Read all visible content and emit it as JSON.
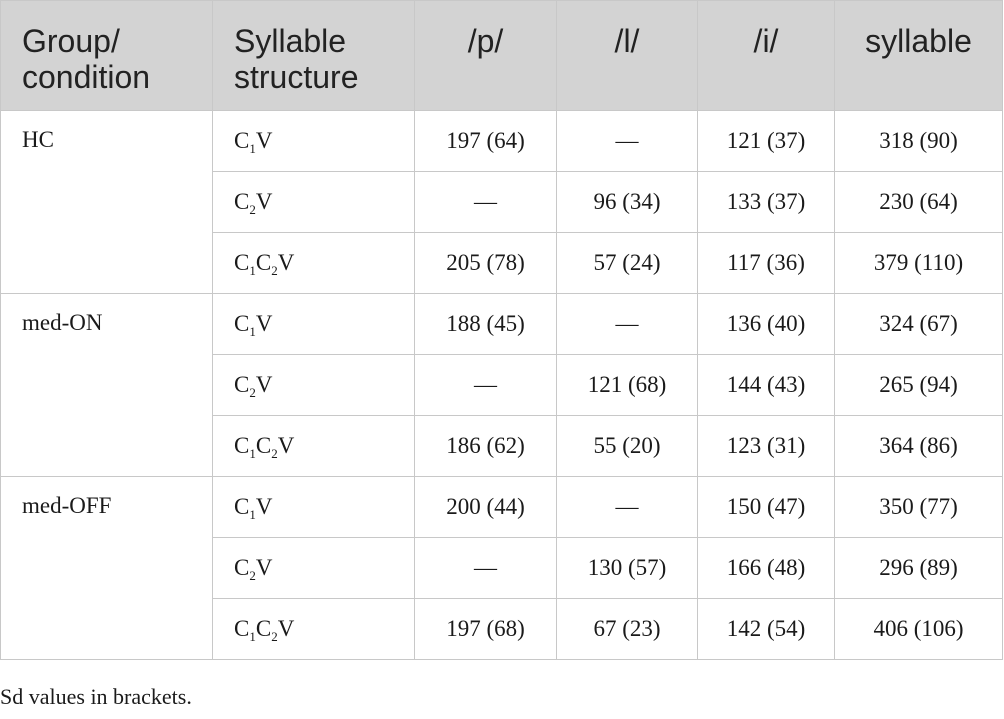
{
  "headers": {
    "group_line1": "Group/",
    "group_line2": "condition",
    "structure_line1": "Syllable",
    "structure_line2": "structure",
    "p": "/p/",
    "l": "/l/",
    "i": "/i/",
    "syllable": "syllable"
  },
  "groups": [
    {
      "name": "HC",
      "rows": [
        {
          "c": "C",
          "s1": "1",
          "mid": "",
          "s2": "",
          "v": "V",
          "p": "197 (64)",
          "l": "—",
          "i": "121 (37)",
          "syllable": "318 (90)"
        },
        {
          "c": "C",
          "s1": "2",
          "mid": "",
          "s2": "",
          "v": "V",
          "p": "—",
          "l": "96 (34)",
          "i": "133 (37)",
          "syllable": "230 (64)"
        },
        {
          "c": "C",
          "s1": "1",
          "mid": "C",
          "s2": "2",
          "v": "V",
          "p": "205 (78)",
          "l": "57 (24)",
          "i": "117 (36)",
          "syllable": "379 (110)"
        }
      ]
    },
    {
      "name": "med-ON",
      "rows": [
        {
          "c": "C",
          "s1": "1",
          "mid": "",
          "s2": "",
          "v": "V",
          "p": "188 (45)",
          "l": "—",
          "i": "136 (40)",
          "syllable": "324 (67)"
        },
        {
          "c": "C",
          "s1": "2",
          "mid": "",
          "s2": "",
          "v": "V",
          "p": "—",
          "l": "121 (68)",
          "i": "144 (43)",
          "syllable": "265 (94)"
        },
        {
          "c": "C",
          "s1": "1",
          "mid": "C",
          "s2": "2",
          "v": "V",
          "p": "186 (62)",
          "l": "55 (20)",
          "i": "123 (31)",
          "syllable": "364 (86)"
        }
      ]
    },
    {
      "name": "med-OFF",
      "rows": [
        {
          "c": "C",
          "s1": "1",
          "mid": "",
          "s2": "",
          "v": "V",
          "p": "200 (44)",
          "l": "—",
          "i": "150 (47)",
          "syllable": "350 (77)"
        },
        {
          "c": "C",
          "s1": "2",
          "mid": "",
          "s2": "",
          "v": "V",
          "p": "—",
          "l": "130 (57)",
          "i": "166 (48)",
          "syllable": "296 (89)"
        },
        {
          "c": "C",
          "s1": "1",
          "mid": "C",
          "s2": "2",
          "v": "V",
          "p": "197 (68)",
          "l": "67 (23)",
          "i": "142 (54)",
          "syllable": "406 (106)"
        }
      ]
    }
  ],
  "note": "Sd values in brackets."
}
